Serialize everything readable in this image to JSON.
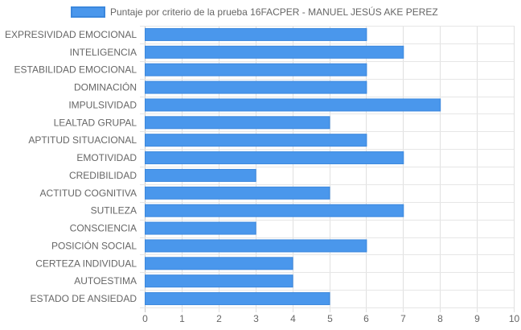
{
  "chart_data": {
    "type": "bar",
    "orientation": "horizontal",
    "categories": [
      "EXPRESIVIDAD EMOCIONAL",
      "INTELIGENCIA",
      "ESTABILIDAD EMOCIONAL",
      "DOMINACIÓN",
      "IMPULSIVIDAD",
      "LEALTAD GRUPAL",
      "APTITUD SITUACIONAL",
      "EMOTIVIDAD",
      "CREDIBILIDAD",
      "ACTITUD COGNITIVA",
      "SUTILEZA",
      "CONSCIENCIA",
      "POSICIÓN SOCIAL",
      "CERTEZA INDIVIDUAL",
      "AUTOESTIMA",
      "ESTADO DE ANSIEDAD"
    ],
    "series": [
      {
        "name": "Puntaje por criterio de la prueba 16FACPER - MANUEL JESÚS AKE PEREZ",
        "values": [
          6,
          7,
          6,
          6,
          8,
          5,
          6,
          7,
          3,
          5,
          7,
          3,
          6,
          4,
          4,
          5
        ],
        "color": "#4a97ec",
        "border_color": "#3b87dd"
      }
    ],
    "x_ticks": [
      "0",
      "1",
      "2",
      "3",
      "4",
      "5",
      "6",
      "7",
      "8",
      "9",
      "10"
    ],
    "xlim": [
      0,
      10
    ],
    "grid": true,
    "legend_position": "top"
  }
}
